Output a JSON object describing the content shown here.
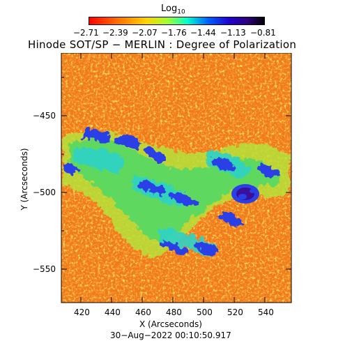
{
  "colorbar": {
    "label_main": "Log",
    "label_sub": "10",
    "ticks": [
      "−2.71",
      "−2.39",
      "−2.07",
      "−1.76",
      "−1.44",
      "−1.13",
      "−0.81"
    ],
    "colors": [
      "#ff0000",
      "#ff6a00",
      "#ffcc00",
      "#99ff33",
      "#00ffcc",
      "#0066ff",
      "#0000cc",
      "#330099",
      "#000000"
    ]
  },
  "title": "Hinode SOT/SP − MERLIN : Degree of Polarization",
  "y_axis": {
    "title": "Y (Arcseconds)",
    "ticks": [
      "−450",
      "−500",
      "−550"
    ]
  },
  "x_axis": {
    "title": "X (Arcseconds)",
    "ticks": [
      "420",
      "440",
      "460",
      "480",
      "500",
      "520",
      "540"
    ]
  },
  "timestamp": "30−Aug−2022 00:10:50.917",
  "map_colors": {
    "background": "#f07a1a",
    "low": "#e8200c",
    "mid": "#ffd21a",
    "green": "#7de04a",
    "cyan": "#2ed3c6",
    "blue": "#2a3fe6",
    "dark": "#3a0f9a"
  }
}
